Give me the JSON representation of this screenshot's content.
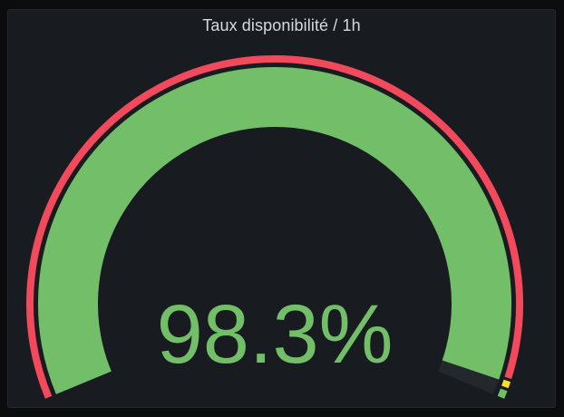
{
  "panel": {
    "title": "Taux disponibilité / 1h"
  },
  "gauge": {
    "value": 98.3,
    "display": "98.3%",
    "min": 0,
    "max": 100,
    "value_color": "#73bf69",
    "track_color": "#24272c",
    "thresholds": [
      {
        "from": 0,
        "to": 98,
        "color": "#f2495c"
      },
      {
        "from": 98,
        "to": 99,
        "color": "#fade2a"
      },
      {
        "from": 99,
        "to": 100,
        "color": "#73bf69"
      }
    ]
  },
  "colors": {
    "panel_bg": "#181b1f",
    "page_bg": "#0b0c0e",
    "title": "#d8d9da"
  }
}
